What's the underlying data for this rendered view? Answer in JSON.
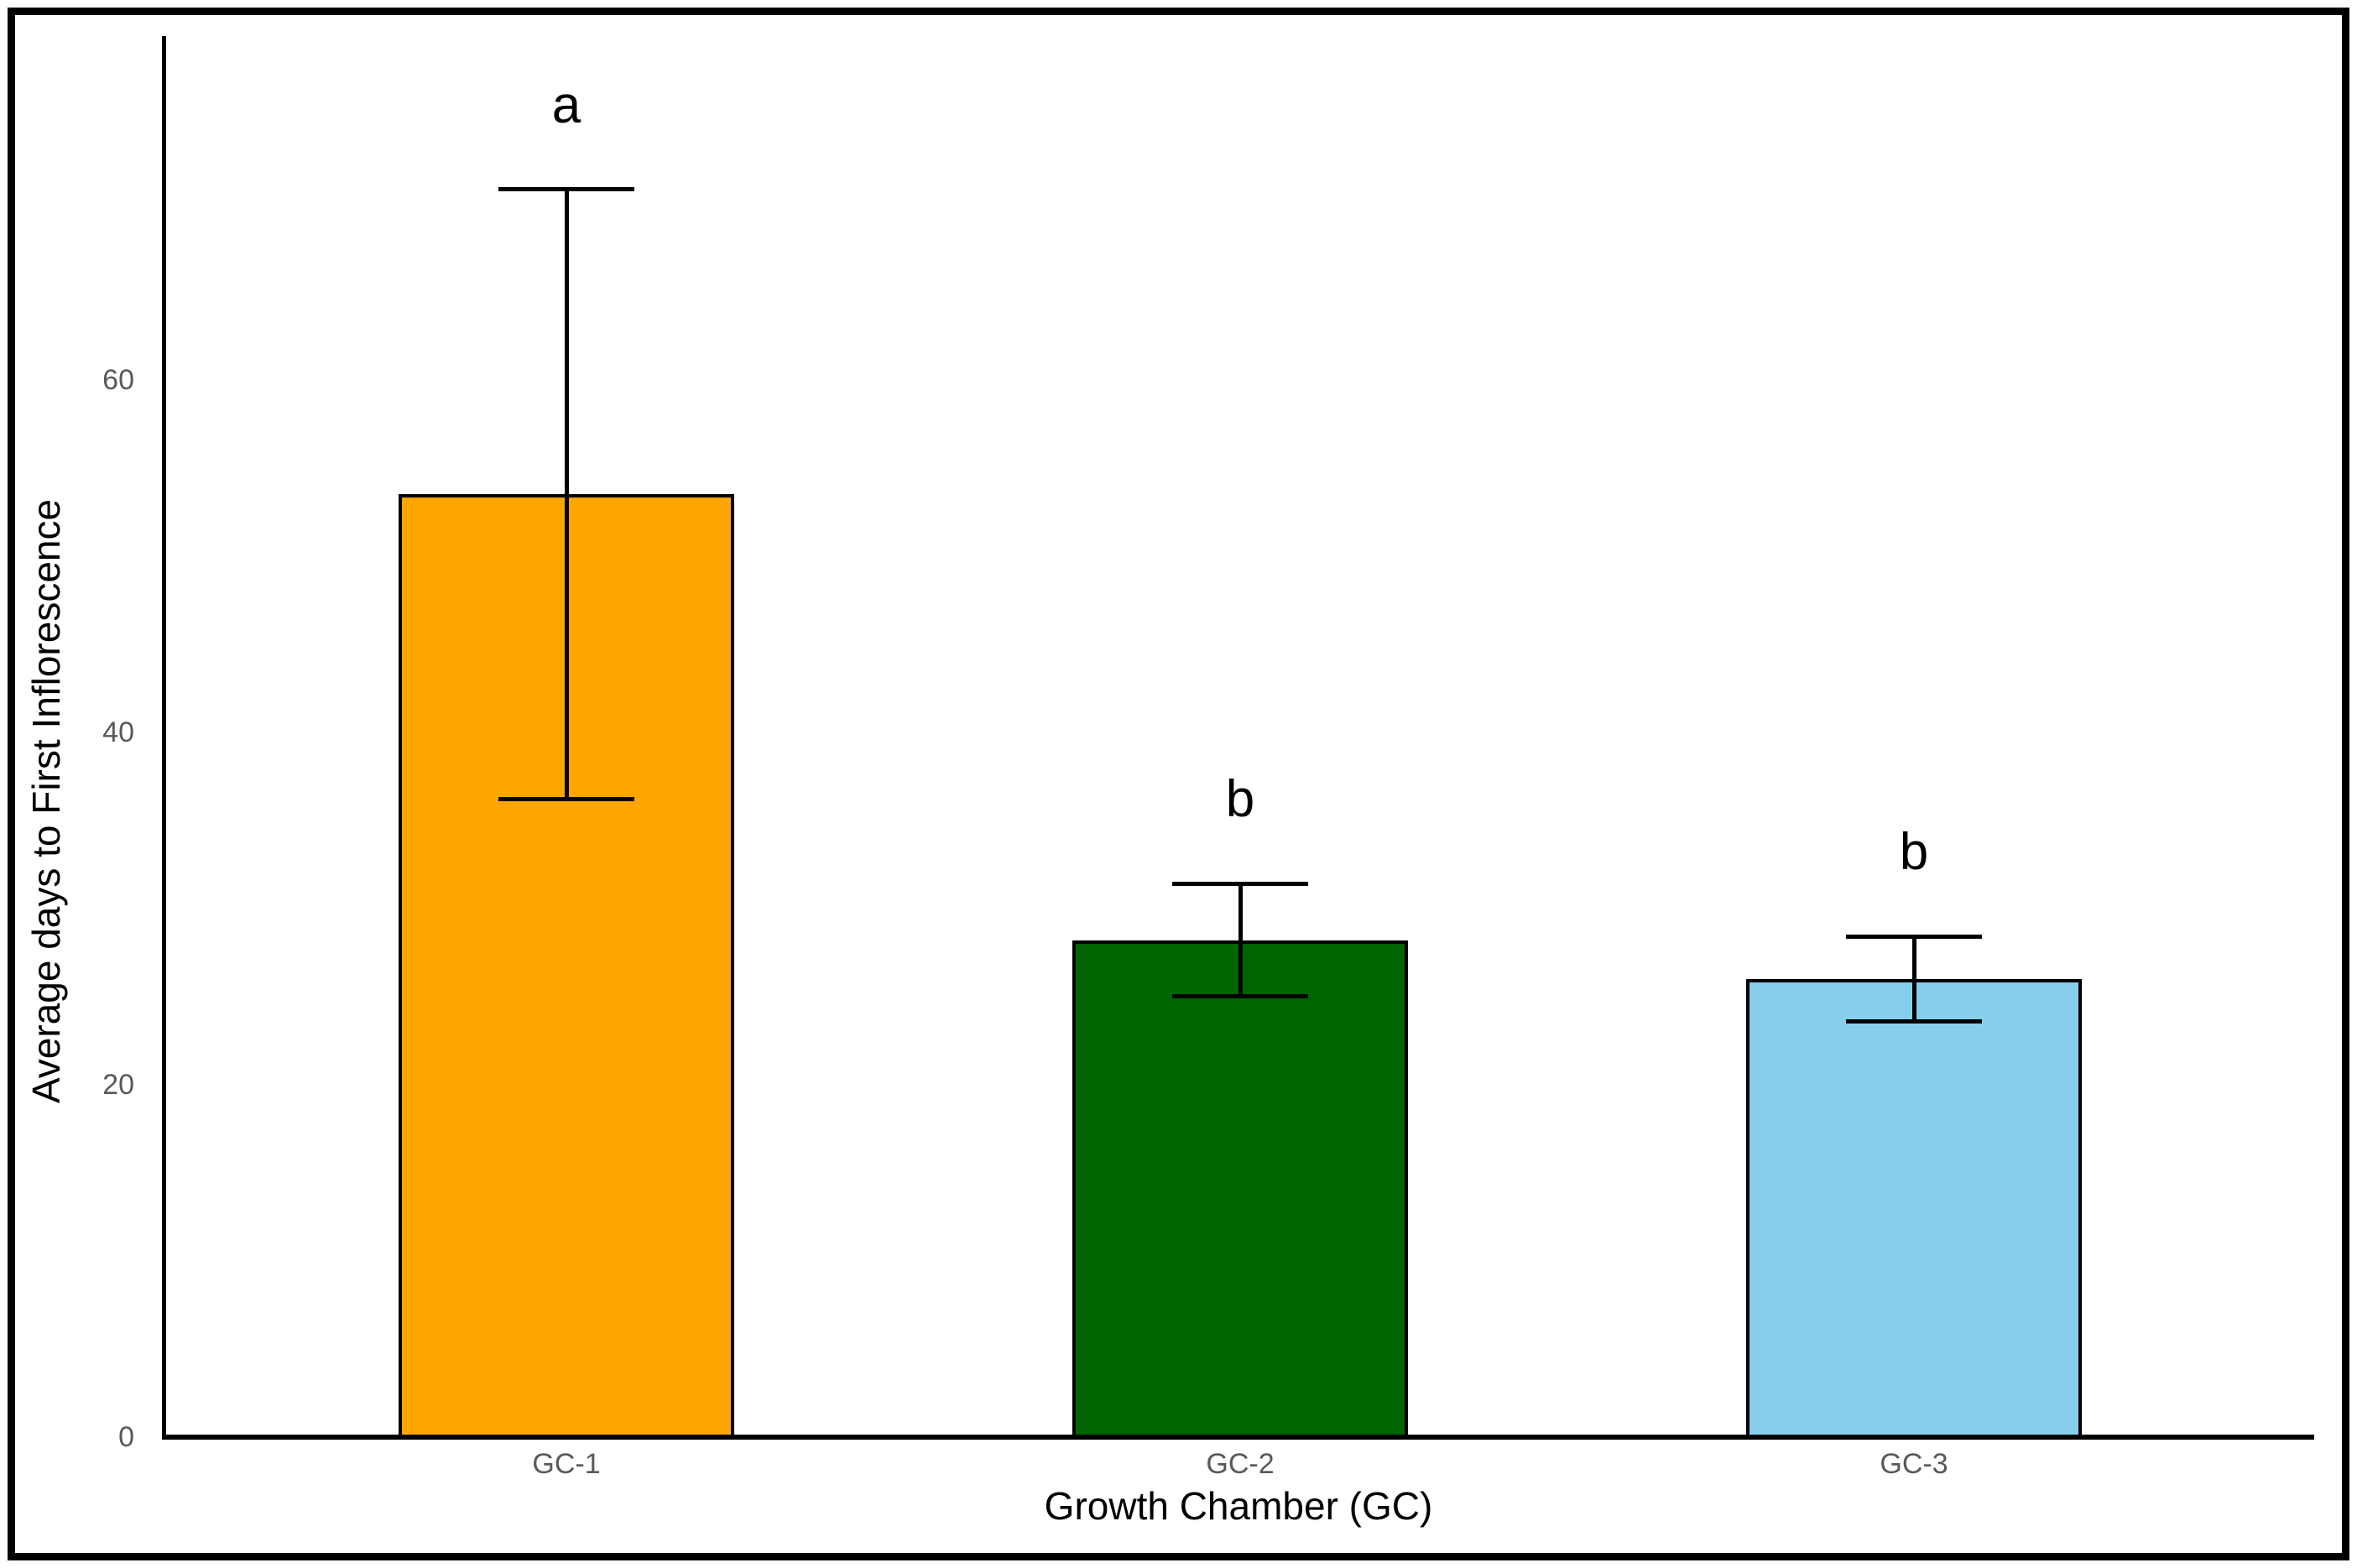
{
  "chart_data": {
    "type": "bar",
    "title": "",
    "categories": [
      "GC-1",
      "GC-2",
      "GC-3"
    ],
    "values": [
      53.5,
      28.2,
      26.0
    ],
    "error_low": [
      36.2,
      25.0,
      23.6
    ],
    "error_high": [
      70.8,
      31.4,
      28.4
    ],
    "significance_letters": [
      "a",
      "b",
      "b"
    ],
    "bar_colors": [
      "#FFA500",
      "#006400",
      "#87CEEB"
    ],
    "bar_edge_color": "#000000",
    "error_bar_color": "#000000",
    "xlabel": "Growth Chamber (GC)",
    "ylabel": "Average days to First Inflorescence",
    "yticks": [
      0,
      20,
      40,
      60
    ],
    "ylim": [
      0,
      79.5
    ],
    "grid": false,
    "legend_position": "none",
    "tick_label_color": "#595959",
    "axis_label_color": "#000000",
    "frame_color": "#000000"
  }
}
